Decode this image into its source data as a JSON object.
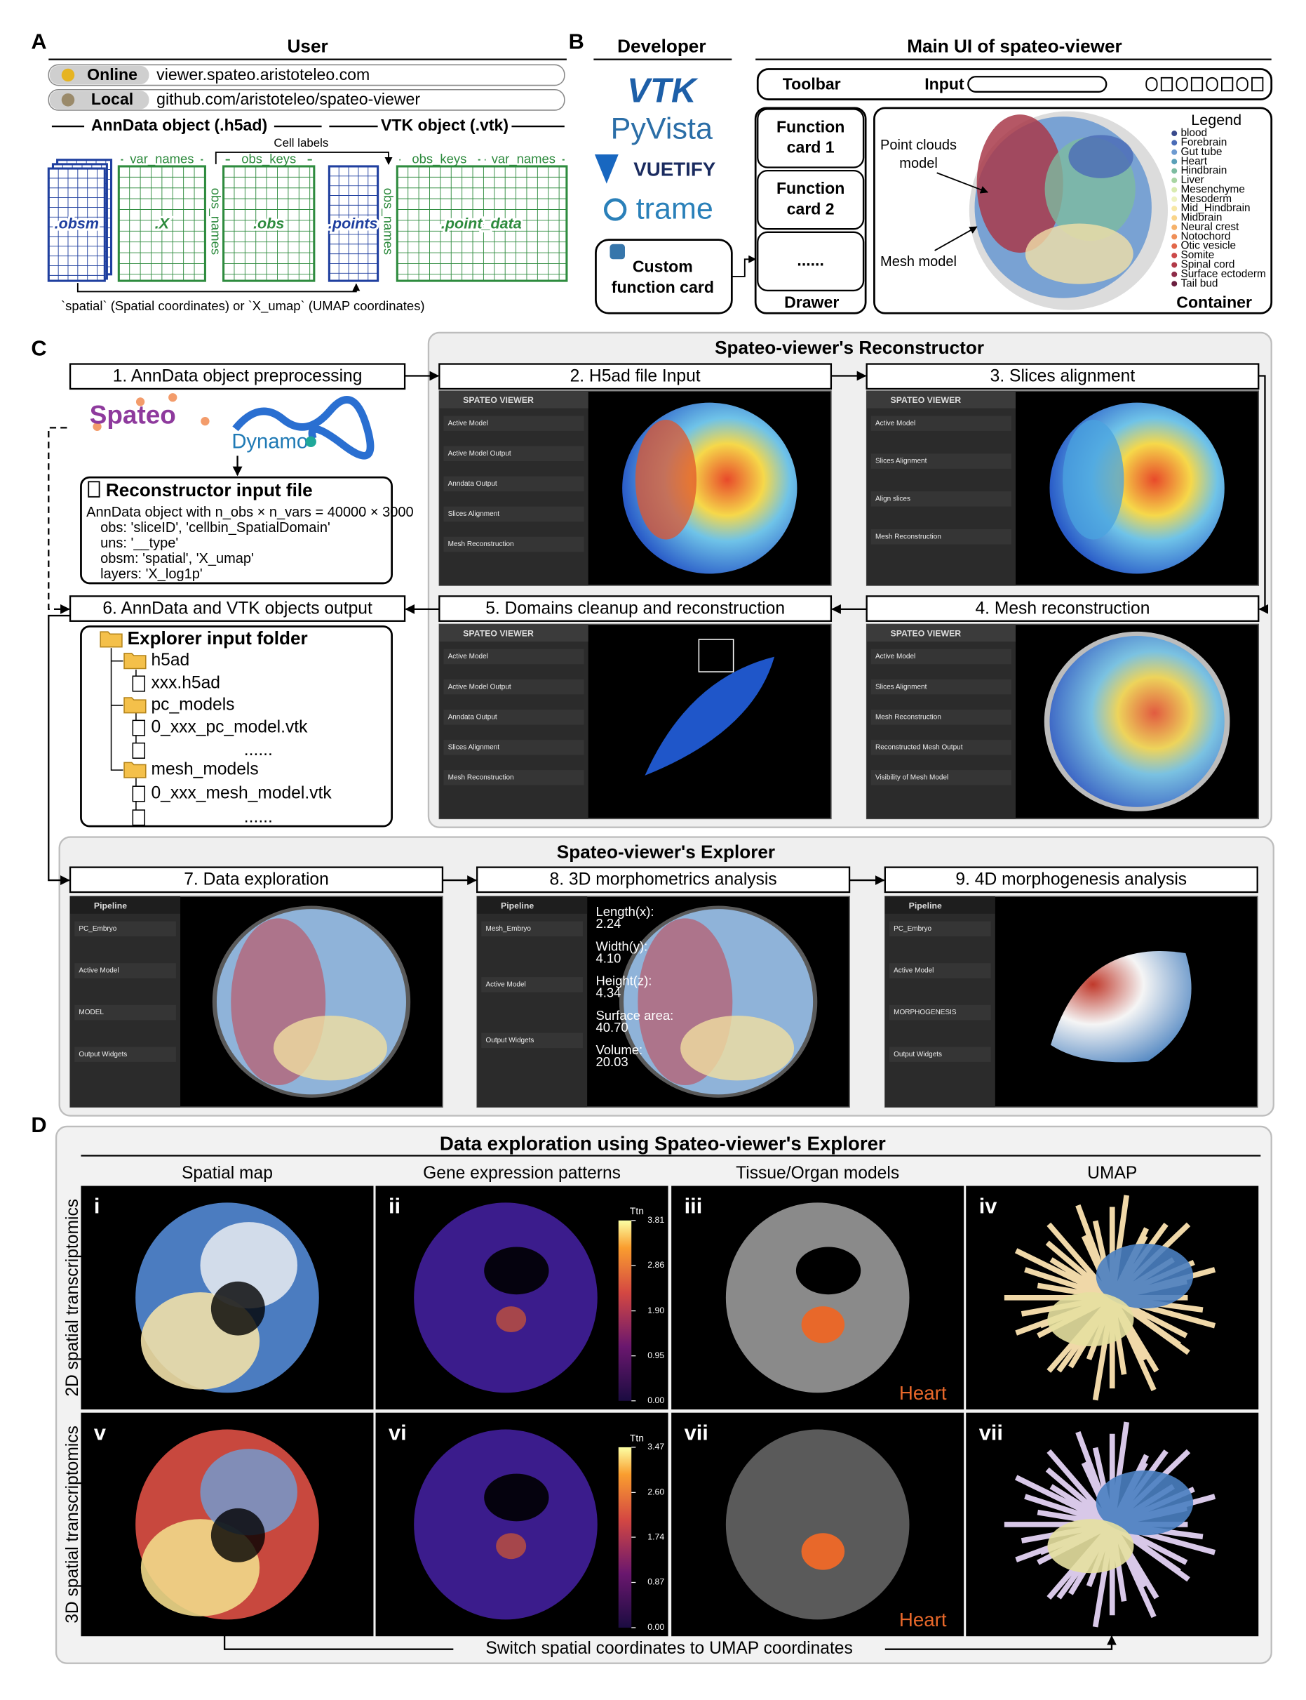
{
  "panel_a": {
    "label": "A",
    "title": "User",
    "links": [
      {
        "name": "Online",
        "url": "viewer.spateo.aristoteleo.com"
      },
      {
        "name": "Local",
        "url": "github.com/aristoteleo/spateo-viewer"
      }
    ],
    "anndata": "AnnData object (.h5ad)",
    "vtk": "VTK object (.vtk)",
    "cell_labels": "Cell labels",
    "blocks": [
      ".obsm",
      ".X",
      ".obs",
      ".points",
      ".point_data"
    ],
    "column_labels": [
      "var_names",
      "obs_keys",
      "obs_keys",
      "var_names"
    ],
    "row_labels": [
      "obs_names",
      "obs_names"
    ],
    "note": "`spatial` (Spatial coordinates) or `X_umap` (UMAP coordinates)"
  },
  "panel_b": {
    "label": "B",
    "developer": "Developer",
    "tools": [
      "VTK",
      "PyVista",
      "VUETIFY",
      "trame"
    ],
    "custom_card": [
      "Custom",
      "function card"
    ],
    "ui_title": "Main UI of spateo-viewer",
    "toolbar": "Toolbar",
    "input": "Input",
    "cards": [
      [
        "Function",
        "card 1"
      ],
      [
        "Function",
        "card 2"
      ],
      [
        "......"
      ]
    ],
    "drawer": "Drawer",
    "point_clouds": [
      "Point clouds",
      "model"
    ],
    "mesh": "Mesh model",
    "legend_title": "Legend",
    "legend": [
      {
        "name": "blood",
        "color": "#3a4a8c"
      },
      {
        "name": "Forebrain",
        "color": "#4b6cb7"
      },
      {
        "name": "Gut tube",
        "color": "#6e9bd1"
      },
      {
        "name": "Heart",
        "color": "#5aa0b8"
      },
      {
        "name": "Hindbrain",
        "color": "#7dbca0"
      },
      {
        "name": "Liver",
        "color": "#a8d5a2"
      },
      {
        "name": "Mesenchyme",
        "color": "#d9ebb0"
      },
      {
        "name": "Mesoderm",
        "color": "#eef2c0"
      },
      {
        "name": "Mid_Hindbrain",
        "color": "#f7e7a6"
      },
      {
        "name": "Midbrain",
        "color": "#f9d48a"
      },
      {
        "name": "Neural crest",
        "color": "#f6b26b"
      },
      {
        "name": "Notochord",
        "color": "#ef8f58"
      },
      {
        "name": "Otic vesicle",
        "color": "#e2674a"
      },
      {
        "name": "Somite",
        "color": "#cc4a4a"
      },
      {
        "name": "Spinal cord",
        "color": "#b23a48"
      },
      {
        "name": "Surface ectoderm",
        "color": "#8e2c48"
      },
      {
        "name": "Tail bud",
        "color": "#6b1f3f"
      }
    ],
    "container": "Container"
  },
  "panel_c": {
    "label": "C",
    "reconstructor": "Spateo-viewer's Reconstructor",
    "explorer": "Spateo-viewer's Explorer",
    "steps": [
      "1. AnnData object preprocessing",
      "2. H5ad file Input",
      "3. Slices alignment",
      "4. Mesh reconstruction",
      "5. Domains cleanup and reconstruction",
      "6. AnnData and VTK objects output",
      "7. Data exploration",
      "8. 3D morphometrics analysis",
      "9. 4D morphogenesis analysis"
    ],
    "logos": [
      "Spateo",
      "Dynamo"
    ],
    "input_file": {
      "title": "Reconstructor input file",
      "lines": [
        "AnnData object with n_obs × n_vars = 40000 × 3000",
        "obs: 'sliceID', 'cellbin_SpatialDomain'",
        "uns: '__type'",
        "obsm: 'spatial', 'X_umap'",
        "layers: 'X_log1p'"
      ]
    },
    "folder": {
      "title": "Explorer input folder",
      "items": [
        "h5ad",
        "xxx.h5ad",
        "pc_models",
        "0_xxx_pc_model.vtk",
        "......",
        "mesh_models",
        "0_xxx_mesh_model.vtk",
        "......"
      ]
    },
    "screens": [
      {
        "header": "SPATEO VIEWER",
        "items": [
          "Active Model",
          "Active Model Output",
          "Anndata Output",
          "Slices Alignment",
          "Mesh Reconstruction"
        ]
      },
      {
        "header": "SPATEO VIEWER",
        "items": [
          "Active Model",
          "Slices Alignment",
          "Align slices",
          "Mesh Reconstruction"
        ]
      },
      {
        "header": "SPATEO VIEWER",
        "items": [
          "Active Model",
          "Slices Alignment",
          "Mesh Reconstruction",
          "Reconstructed Mesh Output",
          "Visibility of Mesh Model"
        ]
      },
      {
        "header": "SPATEO VIEWER",
        "items": [
          "Active Model",
          "Active Model Output",
          "Anndata Output",
          "Slices Alignment",
          "Mesh Reconstruction"
        ]
      },
      {
        "header": "Pipeline",
        "items": [
          "PC_Embryo",
          "Active Model",
          "MODEL",
          "Output Widgets"
        ]
      },
      {
        "header": "Pipeline",
        "items": [
          "Mesh_Embryo",
          "Active Model",
          "Output Widgets"
        ]
      },
      {
        "header": "Pipeline",
        "items": [
          "PC_Embryo",
          "Active Model",
          "MORPHOGENESIS",
          "Output Widgets"
        ]
      }
    ],
    "morphometrics": [
      {
        "name": "Length(x):",
        "value": "2.24"
      },
      {
        "name": "Width(y):",
        "value": "4.10"
      },
      {
        "name": "Height(z):",
        "value": "4.34"
      },
      {
        "name": "Surface area:",
        "value": "40.70"
      },
      {
        "name": "Volume:",
        "value": "20.03"
      }
    ]
  },
  "panel_d": {
    "label": "D",
    "title": "Data exploration using Spateo-viewer's Explorer",
    "columns": [
      "Spatial map",
      "Gene expression patterns",
      "Tissue/Organ models",
      "UMAP"
    ],
    "rows": [
      "2D spatial transcriptomics",
      "3D spatial transcriptomics"
    ],
    "tags": [
      "i",
      "ii",
      "iii",
      "iv",
      "v",
      "vi",
      "vii",
      "vii"
    ],
    "organ": "Heart",
    "colorbars": [
      {
        "gene": "Ttn",
        "ticks": [
          3.81,
          2.86,
          {
            "value": 1.9,
            "label": "1.90"
          },
          0.95,
          {
            "value": 0,
            "label": "0.00"
          }
        ]
      },
      {
        "gene": "Ttn",
        "ticks": [
          3.47,
          {
            "value": 2.6,
            "label": "2.60"
          },
          1.74,
          0.87,
          {
            "value": 0,
            "label": "0.00"
          }
        ]
      }
    ],
    "switch": "Switch spatial coordinates to UMAP coordinates"
  }
}
